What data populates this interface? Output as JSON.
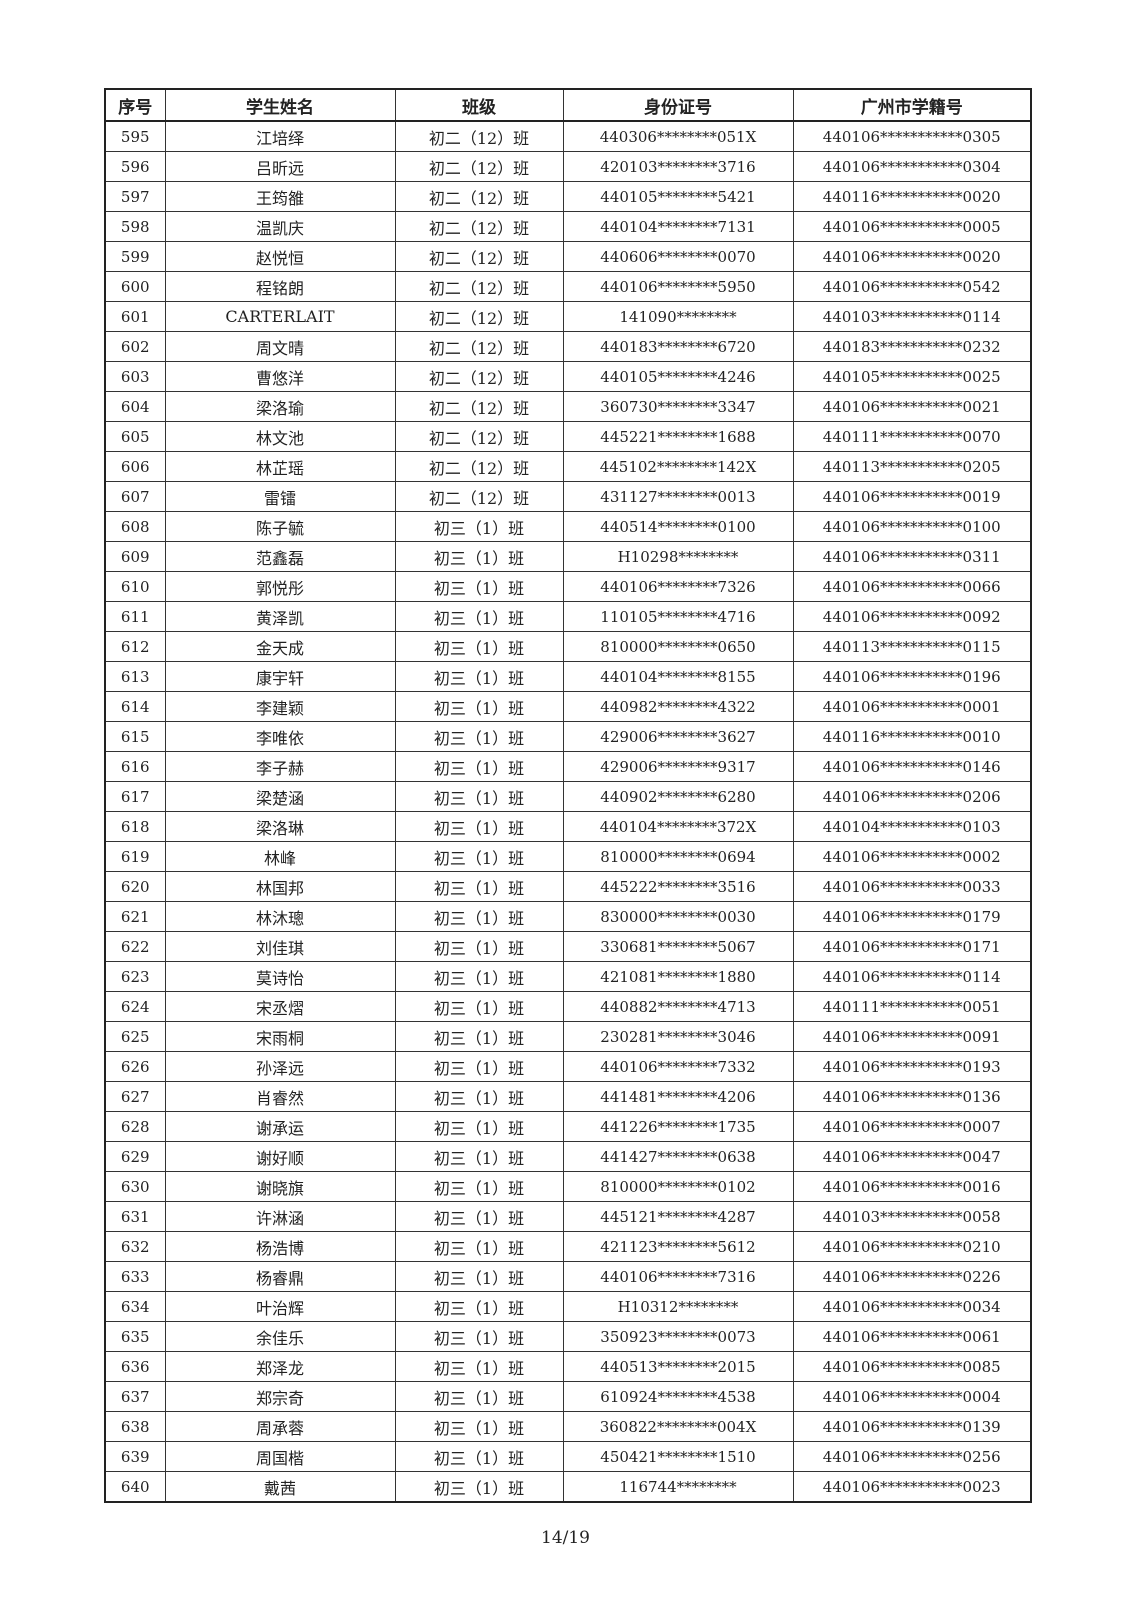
{
  "table": {
    "headers": [
      "序号",
      "学生姓名",
      "班级",
      "身份证号",
      "广州市学籍号"
    ],
    "rows": [
      [
        "595",
        "江培绎",
        "初二（12）班",
        "440306********051X",
        "440106***********0305"
      ],
      [
        "596",
        "吕昕远",
        "初二（12）班",
        "420103********3716",
        "440106***********0304"
      ],
      [
        "597",
        "王筠雒",
        "初二（12）班",
        "440105********5421",
        "440116***********0020"
      ],
      [
        "598",
        "温凯庆",
        "初二（12）班",
        "440104********7131",
        "440106***********0005"
      ],
      [
        "599",
        "赵悦恒",
        "初二（12）班",
        "440606********0070",
        "440106***********0020"
      ],
      [
        "600",
        "程铭朗",
        "初二（12）班",
        "440106********5950",
        "440106***********0542"
      ],
      [
        "601",
        "CARTERLAIT",
        "初二（12）班",
        "141090********",
        "440103***********0114"
      ],
      [
        "602",
        "周文晴",
        "初二（12）班",
        "440183********6720",
        "440183***********0232"
      ],
      [
        "603",
        "曹悠洋",
        "初二（12）班",
        "440105********4246",
        "440105***********0025"
      ],
      [
        "604",
        "梁洛瑜",
        "初二（12）班",
        "360730********3347",
        "440106***********0021"
      ],
      [
        "605",
        "林文池",
        "初二（12）班",
        "445221********1688",
        "440111***********0070"
      ],
      [
        "606",
        "林芷瑶",
        "初二（12）班",
        "445102********142X",
        "440113***********0205"
      ],
      [
        "607",
        "雷镭",
        "初二（12）班",
        "431127********0013",
        "440106***********0019"
      ],
      [
        "608",
        "陈子毓",
        "初三（1）班",
        "440514********0100",
        "440106***********0100"
      ],
      [
        "609",
        "范鑫磊",
        "初三（1）班",
        "H10298********",
        "440106***********0311"
      ],
      [
        "610",
        "郭悦彤",
        "初三（1）班",
        "440106********7326",
        "440106***********0066"
      ],
      [
        "611",
        "黄泽凯",
        "初三（1）班",
        "110105********4716",
        "440106***********0092"
      ],
      [
        "612",
        "金天成",
        "初三（1）班",
        "810000********0650",
        "440113***********0115"
      ],
      [
        "613",
        "康宇轩",
        "初三（1）班",
        "440104********8155",
        "440106***********0196"
      ],
      [
        "614",
        "李建颖",
        "初三（1）班",
        "440982********4322",
        "440106***********0001"
      ],
      [
        "615",
        "李唯依",
        "初三（1）班",
        "429006********3627",
        "440116***********0010"
      ],
      [
        "616",
        "李子赫",
        "初三（1）班",
        "429006********9317",
        "440106***********0146"
      ],
      [
        "617",
        "梁楚涵",
        "初三（1）班",
        "440902********6280",
        "440106***********0206"
      ],
      [
        "618",
        "梁洛琳",
        "初三（1）班",
        "440104********372X",
        "440104***********0103"
      ],
      [
        "619",
        "林峰",
        "初三（1）班",
        "810000********0694",
        "440106***********0002"
      ],
      [
        "620",
        "林国邦",
        "初三（1）班",
        "445222********3516",
        "440106***********0033"
      ],
      [
        "621",
        "林沐璁",
        "初三（1）班",
        "830000********0030",
        "440106***********0179"
      ],
      [
        "622",
        "刘佳琪",
        "初三（1）班",
        "330681********5067",
        "440106***********0171"
      ],
      [
        "623",
        "莫诗怡",
        "初三（1）班",
        "421081********1880",
        "440106***********0114"
      ],
      [
        "624",
        "宋丞熠",
        "初三（1）班",
        "440882********4713",
        "440111***********0051"
      ],
      [
        "625",
        "宋雨桐",
        "初三（1）班",
        "230281********3046",
        "440106***********0091"
      ],
      [
        "626",
        "孙泽远",
        "初三（1）班",
        "440106********7332",
        "440106***********0193"
      ],
      [
        "627",
        "肖睿然",
        "初三（1）班",
        "441481********4206",
        "440106***********0136"
      ],
      [
        "628",
        "谢承运",
        "初三（1）班",
        "441226********1735",
        "440106***********0007"
      ],
      [
        "629",
        "谢好顺",
        "初三（1）班",
        "441427********0638",
        "440106***********0047"
      ],
      [
        "630",
        "谢晓旗",
        "初三（1）班",
        "810000********0102",
        "440106***********0016"
      ],
      [
        "631",
        "许淋涵",
        "初三（1）班",
        "445121********4287",
        "440103***********0058"
      ],
      [
        "632",
        "杨浩博",
        "初三（1）班",
        "421123********5612",
        "440106***********0210"
      ],
      [
        "633",
        "杨睿鼎",
        "初三（1）班",
        "440106********7316",
        "440106***********0226"
      ],
      [
        "634",
        "叶治辉",
        "初三（1）班",
        "H10312********",
        "440106***********0034"
      ],
      [
        "635",
        "余佳乐",
        "初三（1）班",
        "350923********0073",
        "440106***********0061"
      ],
      [
        "636",
        "郑泽龙",
        "初三（1）班",
        "440513********2015",
        "440106***********0085"
      ],
      [
        "637",
        "郑宗奇",
        "初三（1）班",
        "610924********4538",
        "440106***********0004"
      ],
      [
        "638",
        "周承蓉",
        "初三（1）班",
        "360822********004X",
        "440106***********0139"
      ],
      [
        "639",
        "周国楷",
        "初三（1）班",
        "450421********1510",
        "440106***********0256"
      ],
      [
        "640",
        "戴茜",
        "初三（1）班",
        "116744********",
        "440106***********0023"
      ]
    ]
  },
  "footer": {
    "page": "14/19"
  }
}
